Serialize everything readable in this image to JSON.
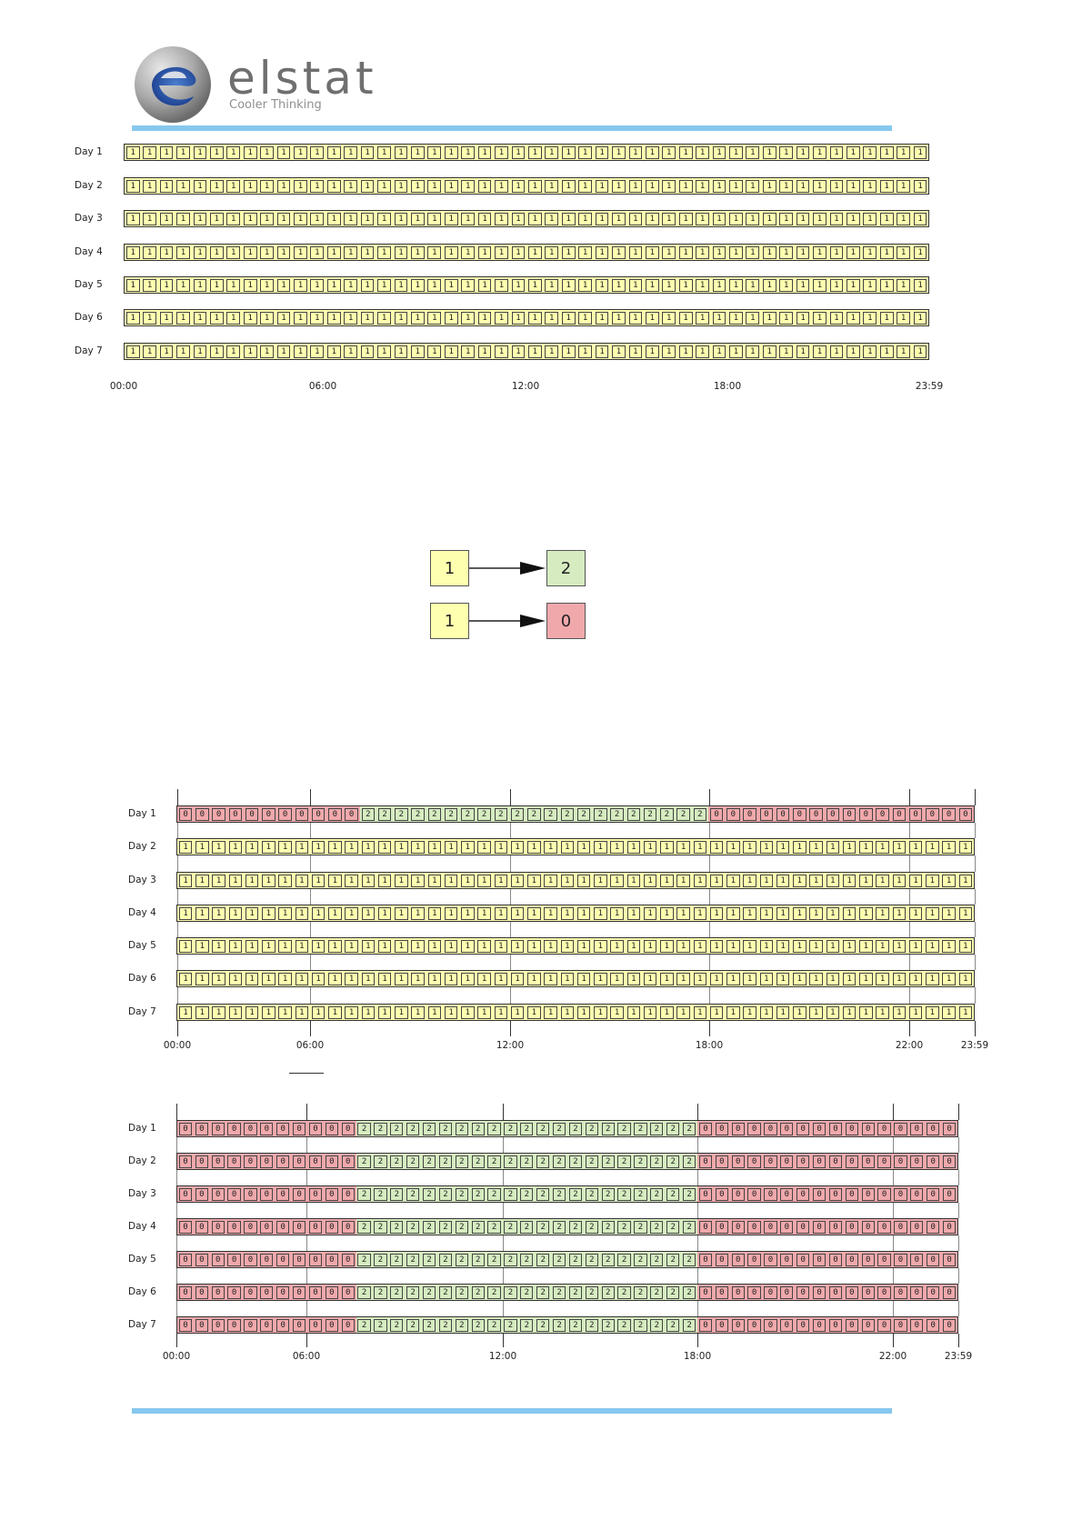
{
  "brand": {
    "name": "elstat",
    "tagline": "Cooler Thinking",
    "logo_icon": "elstat-logo-icon",
    "accent_color": "#87c8ee"
  },
  "colors": {
    "state_1": "#ffffb0",
    "state_2": "#d6ecc0",
    "state_0": "#f0a8ab"
  },
  "schedule_1": {
    "days": [
      "Day 1",
      "Day 2",
      "Day 3",
      "Day 4",
      "Day 5",
      "Day 6",
      "Day 7"
    ],
    "time_labels": [
      "00:00",
      "06:00",
      "12:00",
      "18:00",
      "23:59"
    ],
    "rows": [
      {
        "segments": [
          {
            "value": "1",
            "count": 48
          }
        ]
      },
      {
        "segments": [
          {
            "value": "1",
            "count": 48
          }
        ]
      },
      {
        "segments": [
          {
            "value": "1",
            "count": 48
          }
        ]
      },
      {
        "segments": [
          {
            "value": "1",
            "count": 48
          }
        ]
      },
      {
        "segments": [
          {
            "value": "1",
            "count": 48
          }
        ]
      },
      {
        "segments": [
          {
            "value": "1",
            "count": 48
          }
        ]
      },
      {
        "segments": [
          {
            "value": "1",
            "count": 48
          }
        ]
      }
    ]
  },
  "legend": {
    "transitions": [
      {
        "from": "1",
        "to": "2"
      },
      {
        "from": "1",
        "to": "0"
      }
    ]
  },
  "schedule_2": {
    "days": [
      "Day 1",
      "Day 2",
      "Day 3",
      "Day 4",
      "Day 5",
      "Day 6",
      "Day 7"
    ],
    "time_labels": [
      "00:00",
      "06:00",
      "12:00",
      "18:00",
      "22:00",
      "23:59"
    ],
    "rows": [
      {
        "segments": [
          {
            "value": "0",
            "count": 11
          },
          {
            "value": "2",
            "count": 21
          },
          {
            "value": "0",
            "count": 16
          }
        ]
      },
      {
        "segments": [
          {
            "value": "1",
            "count": 48
          }
        ]
      },
      {
        "segments": [
          {
            "value": "1",
            "count": 48
          }
        ]
      },
      {
        "segments": [
          {
            "value": "1",
            "count": 48
          }
        ]
      },
      {
        "segments": [
          {
            "value": "1",
            "count": 48
          }
        ]
      },
      {
        "segments": [
          {
            "value": "1",
            "count": 48
          }
        ]
      },
      {
        "segments": [
          {
            "value": "1",
            "count": 48
          }
        ]
      }
    ]
  },
  "schedule_3": {
    "days": [
      "Day 1",
      "Day 2",
      "Day 3",
      "Day 4",
      "Day 5",
      "Day 6",
      "Day 7"
    ],
    "time_labels": [
      "00:00",
      "06:00",
      "12:00",
      "18:00",
      "22:00",
      "23:59"
    ],
    "rows": [
      {
        "segments": [
          {
            "value": "0",
            "count": 11
          },
          {
            "value": "2",
            "count": 21
          },
          {
            "value": "0",
            "count": 16
          }
        ]
      },
      {
        "segments": [
          {
            "value": "0",
            "count": 11
          },
          {
            "value": "2",
            "count": 21
          },
          {
            "value": "0",
            "count": 16
          }
        ]
      },
      {
        "segments": [
          {
            "value": "0",
            "count": 11
          },
          {
            "value": "2",
            "count": 21
          },
          {
            "value": "0",
            "count": 16
          }
        ]
      },
      {
        "segments": [
          {
            "value": "0",
            "count": 11
          },
          {
            "value": "2",
            "count": 21
          },
          {
            "value": "0",
            "count": 16
          }
        ]
      },
      {
        "segments": [
          {
            "value": "0",
            "count": 11
          },
          {
            "value": "2",
            "count": 21
          },
          {
            "value": "0",
            "count": 16
          }
        ]
      },
      {
        "segments": [
          {
            "value": "0",
            "count": 11
          },
          {
            "value": "2",
            "count": 21
          },
          {
            "value": "0",
            "count": 16
          }
        ]
      },
      {
        "segments": [
          {
            "value": "0",
            "count": 11
          },
          {
            "value": "2",
            "count": 21
          },
          {
            "value": "0",
            "count": 16
          }
        ]
      }
    ]
  }
}
